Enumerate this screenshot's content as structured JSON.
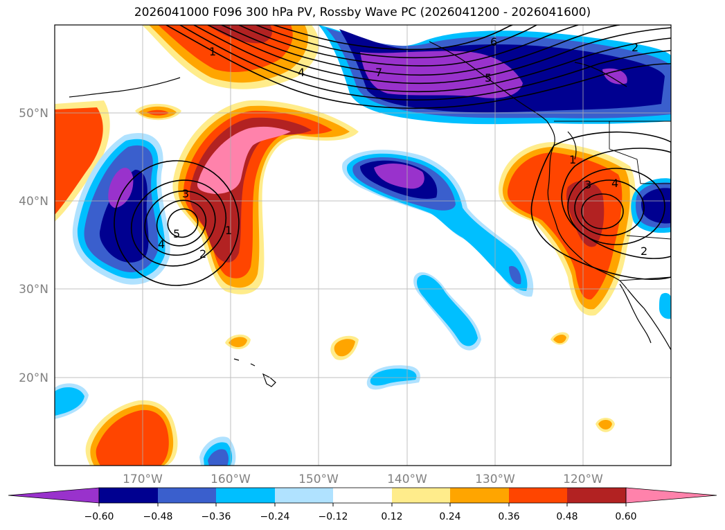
{
  "title": "2026041000 F096 300 hPa PV, Rossby Wave PC (2026041200 - 2026041600)",
  "map": {
    "lat_labels": [
      "50°N",
      "40°N",
      "30°N",
      "20°N"
    ],
    "lon_labels": [
      "170°W",
      "160°W",
      "150°W",
      "140°W",
      "130°W",
      "120°W"
    ],
    "contour_labels": [
      "1",
      "4",
      "6",
      "2",
      "7",
      "5",
      "1",
      "3",
      "4",
      "3",
      "5",
      "4",
      "2",
      "1",
      "2"
    ]
  },
  "colorbar": {
    "colors": [
      "#9932cc",
      "#000090",
      "#3a5fcd",
      "#00bfff",
      "#b0e2ff",
      "#ffffff",
      "#ffec8b",
      "#ffa500",
      "#ff4500",
      "#b22222",
      "#ff82ab"
    ],
    "tick_labels": [
      "−0.60",
      "−0.48",
      "−0.36",
      "−0.24",
      "−0.12",
      "0.12",
      "0.24",
      "0.36",
      "0.48",
      "0.60"
    ]
  },
  "chart_data": {
    "type": "heatmap",
    "title": "2026041000 F096 300 hPa PV, Rossby Wave PC (2026041200 - 2026041600)",
    "x_range": [
      "180°W",
      "110°W"
    ],
    "y_range": [
      "10°N",
      "60°N"
    ],
    "levels": [
      -0.6,
      -0.48,
      -0.36,
      -0.24,
      -0.12,
      0.12,
      0.24,
      0.36,
      0.48,
      0.6
    ],
    "contour_levels": [
      1,
      2,
      3,
      4,
      5,
      6,
      7
    ]
  }
}
